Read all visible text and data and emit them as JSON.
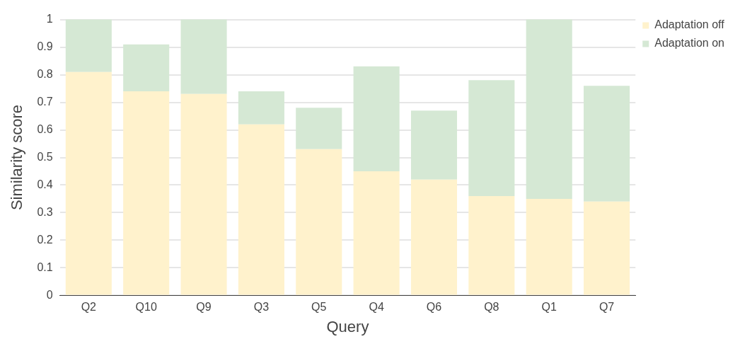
{
  "chart_data": {
    "type": "bar",
    "stacked": true,
    "xlabel": "Query",
    "ylabel": "Similarity score",
    "categories": [
      "Q2",
      "Q10",
      "Q9",
      "Q3",
      "Q5",
      "Q4",
      "Q6",
      "Q8",
      "Q1",
      "Q7"
    ],
    "series": [
      {
        "name": "Adaptation off",
        "color": "#fff2cc",
        "values": [
          0.81,
          0.74,
          0.73,
          0.62,
          0.53,
          0.45,
          0.42,
          0.36,
          0.35,
          0.34
        ]
      },
      {
        "name": "Adaptation on",
        "color": "#d5e8d4",
        "values": [
          0.19,
          0.17,
          0.27,
          0.12,
          0.15,
          0.38,
          0.25,
          0.42,
          0.65,
          0.42
        ]
      }
    ],
    "ylim": [
      0,
      1
    ],
    "yticks": [
      0,
      0.1,
      0.2,
      0.3,
      0.4,
      0.5,
      0.6,
      0.7,
      0.8,
      0.9,
      1
    ],
    "grid": "y",
    "legend": "top right"
  }
}
